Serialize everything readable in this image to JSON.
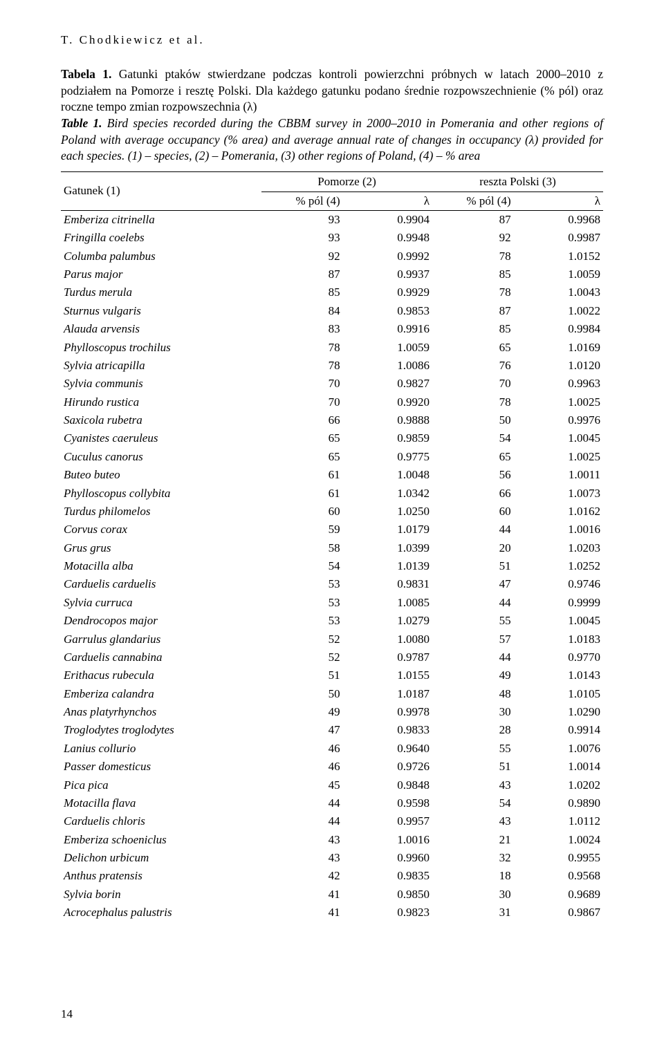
{
  "runningHead": "T. Chodkiewicz et al.",
  "caption": {
    "tabelaLabel": "Tabela 1.",
    "plText": " Gatunki ptaków stwierdzane podczas kontroli powierzchni próbnych w latach 2000–2010 z podziałem na Pomorze i resztę Polski. Dla każdego gatunku podano średnie rozpowszechnienie (% pól) oraz roczne tempo zmian rozpowszechnia (λ)",
    "tableLabel": "Table 1.",
    "enText": " Bird species recorded during the CBBM survey in 2000–2010 in Pomerania and other regions of Poland with average occupancy (% area) and average annual rate of changes in occupancy (λ) provided for each species. (1) – species, (2) – Pomerania, (3) other regions of Poland, (4) – % area"
  },
  "columns": {
    "species": "Gatunek (1)",
    "group1": "Pomorze (2)",
    "group2": "reszta Polski (3)",
    "pct": "% pól (4)",
    "lambda": "λ"
  },
  "rows": [
    {
      "sp": "Emberiza citrinella",
      "p1": "93",
      "l1": "0.9904",
      "p2": "87",
      "l2": "0.9968"
    },
    {
      "sp": "Fringilla coelebs",
      "p1": "93",
      "l1": "0.9948",
      "p2": "92",
      "l2": "0.9987"
    },
    {
      "sp": "Columba palumbus",
      "p1": "92",
      "l1": "0.9992",
      "p2": "78",
      "l2": "1.0152"
    },
    {
      "sp": "Parus major",
      "p1": "87",
      "l1": "0.9937",
      "p2": "85",
      "l2": "1.0059"
    },
    {
      "sp": "Turdus merula",
      "p1": "85",
      "l1": "0.9929",
      "p2": "78",
      "l2": "1.0043"
    },
    {
      "sp": "Sturnus vulgaris",
      "p1": "84",
      "l1": "0.9853",
      "p2": "87",
      "l2": "1.0022"
    },
    {
      "sp": "Alauda arvensis",
      "p1": "83",
      "l1": "0.9916",
      "p2": "85",
      "l2": "0.9984"
    },
    {
      "sp": "Phylloscopus trochilus",
      "p1": "78",
      "l1": "1.0059",
      "p2": "65",
      "l2": "1.0169"
    },
    {
      "sp": "Sylvia atricapilla",
      "p1": "78",
      "l1": "1.0086",
      "p2": "76",
      "l2": "1.0120"
    },
    {
      "sp": "Sylvia communis",
      "p1": "70",
      "l1": "0.9827",
      "p2": "70",
      "l2": "0.9963"
    },
    {
      "sp": "Hirundo rustica",
      "p1": "70",
      "l1": "0.9920",
      "p2": "78",
      "l2": "1.0025"
    },
    {
      "sp": "Saxicola rubetra",
      "p1": "66",
      "l1": "0.9888",
      "p2": "50",
      "l2": "0.9976"
    },
    {
      "sp": "Cyanistes caeruleus",
      "p1": "65",
      "l1": "0.9859",
      "p2": "54",
      "l2": "1.0045"
    },
    {
      "sp": "Cuculus canorus",
      "p1": "65",
      "l1": "0.9775",
      "p2": "65",
      "l2": "1.0025"
    },
    {
      "sp": "Buteo buteo",
      "p1": "61",
      "l1": "1.0048",
      "p2": "56",
      "l2": "1.0011"
    },
    {
      "sp": "Phylloscopus collybita",
      "p1": "61",
      "l1": "1.0342",
      "p2": "66",
      "l2": "1.0073"
    },
    {
      "sp": "Turdus philomelos",
      "p1": "60",
      "l1": "1.0250",
      "p2": "60",
      "l2": "1.0162"
    },
    {
      "sp": "Corvus corax",
      "p1": "59",
      "l1": "1.0179",
      "p2": "44",
      "l2": "1.0016"
    },
    {
      "sp": "Grus grus",
      "p1": "58",
      "l1": "1.0399",
      "p2": "20",
      "l2": "1.0203"
    },
    {
      "sp": "Motacilla alba",
      "p1": "54",
      "l1": "1.0139",
      "p2": "51",
      "l2": "1.0252"
    },
    {
      "sp": "Carduelis carduelis",
      "p1": "53",
      "l1": "0.9831",
      "p2": "47",
      "l2": "0.9746"
    },
    {
      "sp": "Sylvia curruca",
      "p1": "53",
      "l1": "1.0085",
      "p2": "44",
      "l2": "0.9999"
    },
    {
      "sp": "Dendrocopos major",
      "p1": "53",
      "l1": "1.0279",
      "p2": "55",
      "l2": "1.0045"
    },
    {
      "sp": "Garrulus glandarius",
      "p1": "52",
      "l1": "1.0080",
      "p2": "57",
      "l2": "1.0183"
    },
    {
      "sp": "Carduelis cannabina",
      "p1": "52",
      "l1": "0.9787",
      "p2": "44",
      "l2": "0.9770"
    },
    {
      "sp": "Erithacus rubecula",
      "p1": "51",
      "l1": "1.0155",
      "p2": "49",
      "l2": "1.0143"
    },
    {
      "sp": "Emberiza calandra",
      "p1": "50",
      "l1": "1.0187",
      "p2": "48",
      "l2": "1.0105"
    },
    {
      "sp": "Anas platyrhynchos",
      "p1": "49",
      "l1": "0.9978",
      "p2": "30",
      "l2": "1.0290"
    },
    {
      "sp": "Troglodytes troglodytes",
      "p1": "47",
      "l1": "0.9833",
      "p2": "28",
      "l2": "0.9914"
    },
    {
      "sp": "Lanius collurio",
      "p1": "46",
      "l1": "0.9640",
      "p2": "55",
      "l2": "1.0076"
    },
    {
      "sp": "Passer domesticus",
      "p1": "46",
      "l1": "0.9726",
      "p2": "51",
      "l2": "1.0014"
    },
    {
      "sp": "Pica pica",
      "p1": "45",
      "l1": "0.9848",
      "p2": "43",
      "l2": "1.0202"
    },
    {
      "sp": "Motacilla flava",
      "p1": "44",
      "l1": "0.9598",
      "p2": "54",
      "l2": "0.9890"
    },
    {
      "sp": "Carduelis chloris",
      "p1": "44",
      "l1": "0.9957",
      "p2": "43",
      "l2": "1.0112"
    },
    {
      "sp": "Emberiza schoeniclus",
      "p1": "43",
      "l1": "1.0016",
      "p2": "21",
      "l2": "1.0024"
    },
    {
      "sp": "Delichon urbicum",
      "p1": "43",
      "l1": "0.9960",
      "p2": "32",
      "l2": "0.9955"
    },
    {
      "sp": "Anthus pratensis",
      "p1": "42",
      "l1": "0.9835",
      "p2": "18",
      "l2": "0.9568"
    },
    {
      "sp": "Sylvia borin",
      "p1": "41",
      "l1": "0.9850",
      "p2": "30",
      "l2": "0.9689"
    },
    {
      "sp": "Acrocephalus palustris",
      "p1": "41",
      "l1": "0.9823",
      "p2": "31",
      "l2": "0.9867"
    }
  ],
  "pageNumber": "14"
}
